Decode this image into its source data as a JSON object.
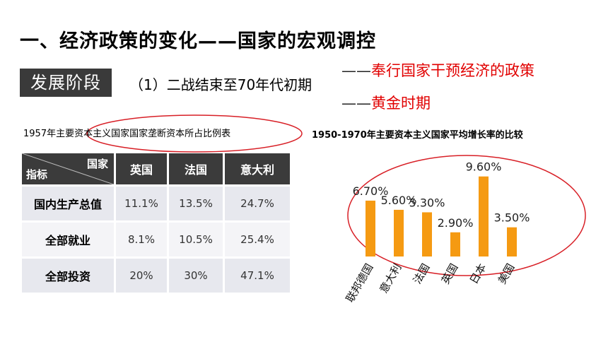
{
  "page": {
    "title": "一、经济政策的变化——国家的宏观调控",
    "stage_badge": "发展阶段",
    "stage_text": "（1）二战结束至70年代初期",
    "notes": [
      {
        "dash": "——",
        "text": "奉行国家干预经济的政策"
      },
      {
        "dash": "——",
        "text": "黄金时期"
      }
    ]
  },
  "table": {
    "caption": "1957年主要资本主义国家国家垄断资本所占比例表",
    "corner_top": "国家",
    "corner_bottom": "指标",
    "columns": [
      "英国",
      "法国",
      "意大利"
    ],
    "rows": [
      {
        "label": "国内生产总值",
        "values": [
          "11.1%",
          "13.5%",
          "24.7%"
        ]
      },
      {
        "label": "全部就业",
        "values": [
          "8.1%",
          "10.5%",
          "25.4%"
        ]
      },
      {
        "label": "全部投资",
        "values": [
          "20%",
          "30%",
          "47.1%"
        ]
      }
    ]
  },
  "chart_data": {
    "type": "bar",
    "title": "1950-1970年主要资本主义国家平均增长率的比较",
    "categories": [
      "联邦德国",
      "意大利",
      "法国",
      "英国",
      "日本",
      "美国"
    ],
    "values": [
      6.7,
      5.6,
      5.3,
      2.9,
      9.6,
      3.5
    ],
    "data_labels": [
      "6.70%",
      "5.60%",
      "5.30%",
      "2.90%",
      "9.60%",
      "3.50%"
    ],
    "ylim": [
      0,
      10
    ],
    "grid": false,
    "bar_color": "#f59a12",
    "xlabel": "",
    "ylabel": ""
  },
  "colors": {
    "accent_red": "#e10000",
    "header_dark": "#3b3b3b",
    "cell_light": "#e7e8ee",
    "ellipse": "#d81f26"
  }
}
